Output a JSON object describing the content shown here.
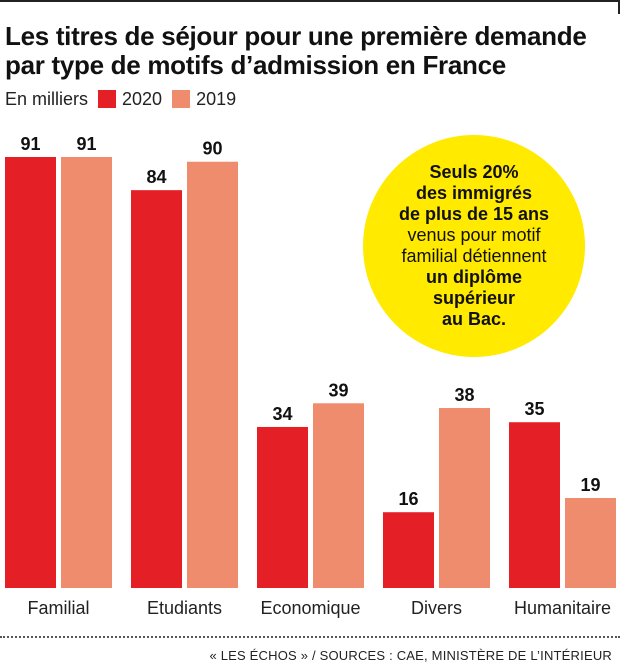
{
  "header": {
    "title_line1": "Les titres de séjour pour une première demande",
    "title_line2": "par type de motifs d’admission en France",
    "unit_label": "En milliers"
  },
  "chart_data": {
    "type": "bar",
    "title": "Les titres de séjour pour une première demande par type de motifs d’admission en France",
    "ylabel": "En milliers",
    "xlabel": "",
    "categories": [
      "Familial",
      "Etudiants",
      "Economique",
      "Divers",
      "Humanitaire"
    ],
    "series": [
      {
        "name": "2020",
        "color": "#e41f26",
        "values": [
          91,
          84,
          34,
          16,
          35
        ]
      },
      {
        "name": "2019",
        "color": "#f08c6e",
        "values": [
          91,
          90,
          39,
          38,
          19
        ]
      }
    ],
    "ylim": [
      0,
      91
    ],
    "grid": false,
    "legend": "top-left"
  },
  "callout": {
    "line1": "Seuls 20%",
    "line2": "des immigrés",
    "line3": "de plus de 15 ans",
    "line4": "venus pour motif",
    "line5": "familial détiennent",
    "line6": "un diplôme",
    "line7": "supérieur",
    "line8": "au Bac.",
    "color": "#ffea00"
  },
  "footer": {
    "source": "« LES ÉCHOS » / SOURCES : CAE, MINISTÈRE DE L’INTÉRIEUR"
  }
}
